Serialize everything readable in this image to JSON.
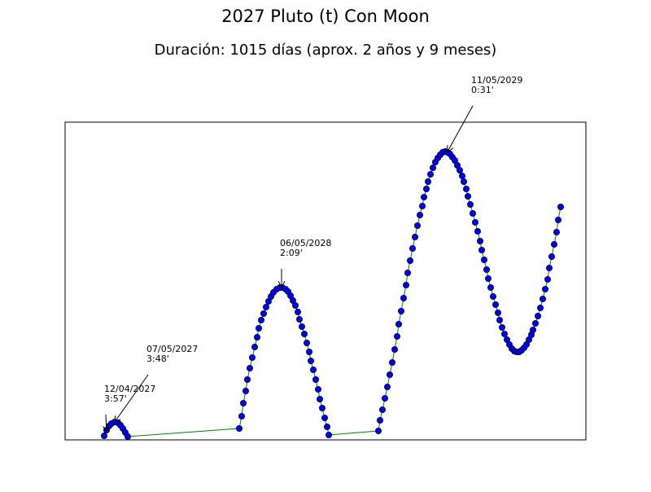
{
  "chart_data": {
    "type": "line",
    "title": "2027 Pluto (t) Con Moon",
    "subtitle": "Duración: 1015 días (aprox. 2 años y 9 meses)",
    "x": [
      48,
      51,
      54,
      57,
      61,
      65,
      68,
      71,
      74,
      77,
      214,
      217,
      219,
      222,
      224,
      227,
      230,
      233,
      236,
      238,
      241,
      244,
      247,
      250,
      253,
      256,
      260,
      264,
      267,
      271,
      274,
      277,
      280,
      283,
      286,
      288,
      291,
      294,
      297,
      300,
      302,
      305,
      308,
      311,
      313,
      316,
      319,
      322,
      324,
      385,
      387,
      390,
      393,
      396,
      399,
      402,
      405,
      408,
      410,
      413,
      416,
      419,
      421,
      424,
      427,
      430,
      433,
      436,
      439,
      441,
      444,
      446,
      449,
      452,
      455,
      458,
      461,
      464,
      467,
      470,
      473,
      476,
      479,
      482,
      485,
      488,
      490,
      493,
      495,
      498,
      501,
      504,
      507,
      510,
      512,
      515,
      518,
      520,
      523,
      526,
      529,
      532,
      534,
      537,
      540,
      543,
      546,
      549,
      552,
      555,
      558,
      561,
      564,
      567,
      570,
      573,
      575,
      578,
      581,
      584,
      587,
      590,
      593,
      595,
      598,
      601,
      604,
      606,
      609
    ],
    "series": [
      {
        "color": "#008000",
        "marker_color": "#0000ee",
        "values": [
          5,
          12,
          17,
          20,
          22,
          21,
          18,
          14,
          9,
          4,
          14,
          29,
          45,
          60,
          74,
          88,
          101,
          114,
          126,
          137,
          147,
          155,
          163,
          170,
          176,
          181,
          185,
          187,
          187,
          185,
          182,
          177,
          171,
          165,
          157,
          148,
          139,
          130,
          119,
          108,
          97,
          86,
          74,
          62,
          50,
          39,
          27,
          16,
          6,
          11,
          24,
          37,
          51,
          65,
          80,
          95,
          111,
          127,
          142,
          158,
          174,
          190,
          205,
          220,
          235,
          249,
          263,
          276,
          287,
          298,
          308,
          317,
          326,
          334,
          341,
          346,
          350,
          353,
          354,
          353,
          351,
          347,
          343,
          337,
          331,
          324,
          317,
          308,
          299,
          289,
          278,
          267,
          256,
          244,
          233,
          221,
          209,
          198,
          187,
          176,
          166,
          156,
          147,
          138,
          130,
          123,
          117,
          112,
          109,
          108,
          108,
          110,
          113,
          117,
          123,
          129,
          135,
          143,
          152,
          162,
          173,
          185,
          197,
          211,
          225,
          240,
          255,
          270,
          286
        ]
      }
    ],
    "xlim": [
      0,
      640
    ],
    "ylim": [
      0,
      390
    ],
    "annotations": [
      {
        "text": [
          "12/04/2027",
          "3:57'"
        ],
        "x": 51,
        "y": 10
      },
      {
        "text": [
          "07/05/2027",
          "3:48'"
        ],
        "x": 61,
        "y": 22
      },
      {
        "text": [
          "06/05/2028",
          "2:09'"
        ],
        "x": 266,
        "y": 188
      },
      {
        "text": [
          "11/05/2029",
          "0:31'"
        ],
        "x": 470,
        "y": 354
      }
    ]
  }
}
